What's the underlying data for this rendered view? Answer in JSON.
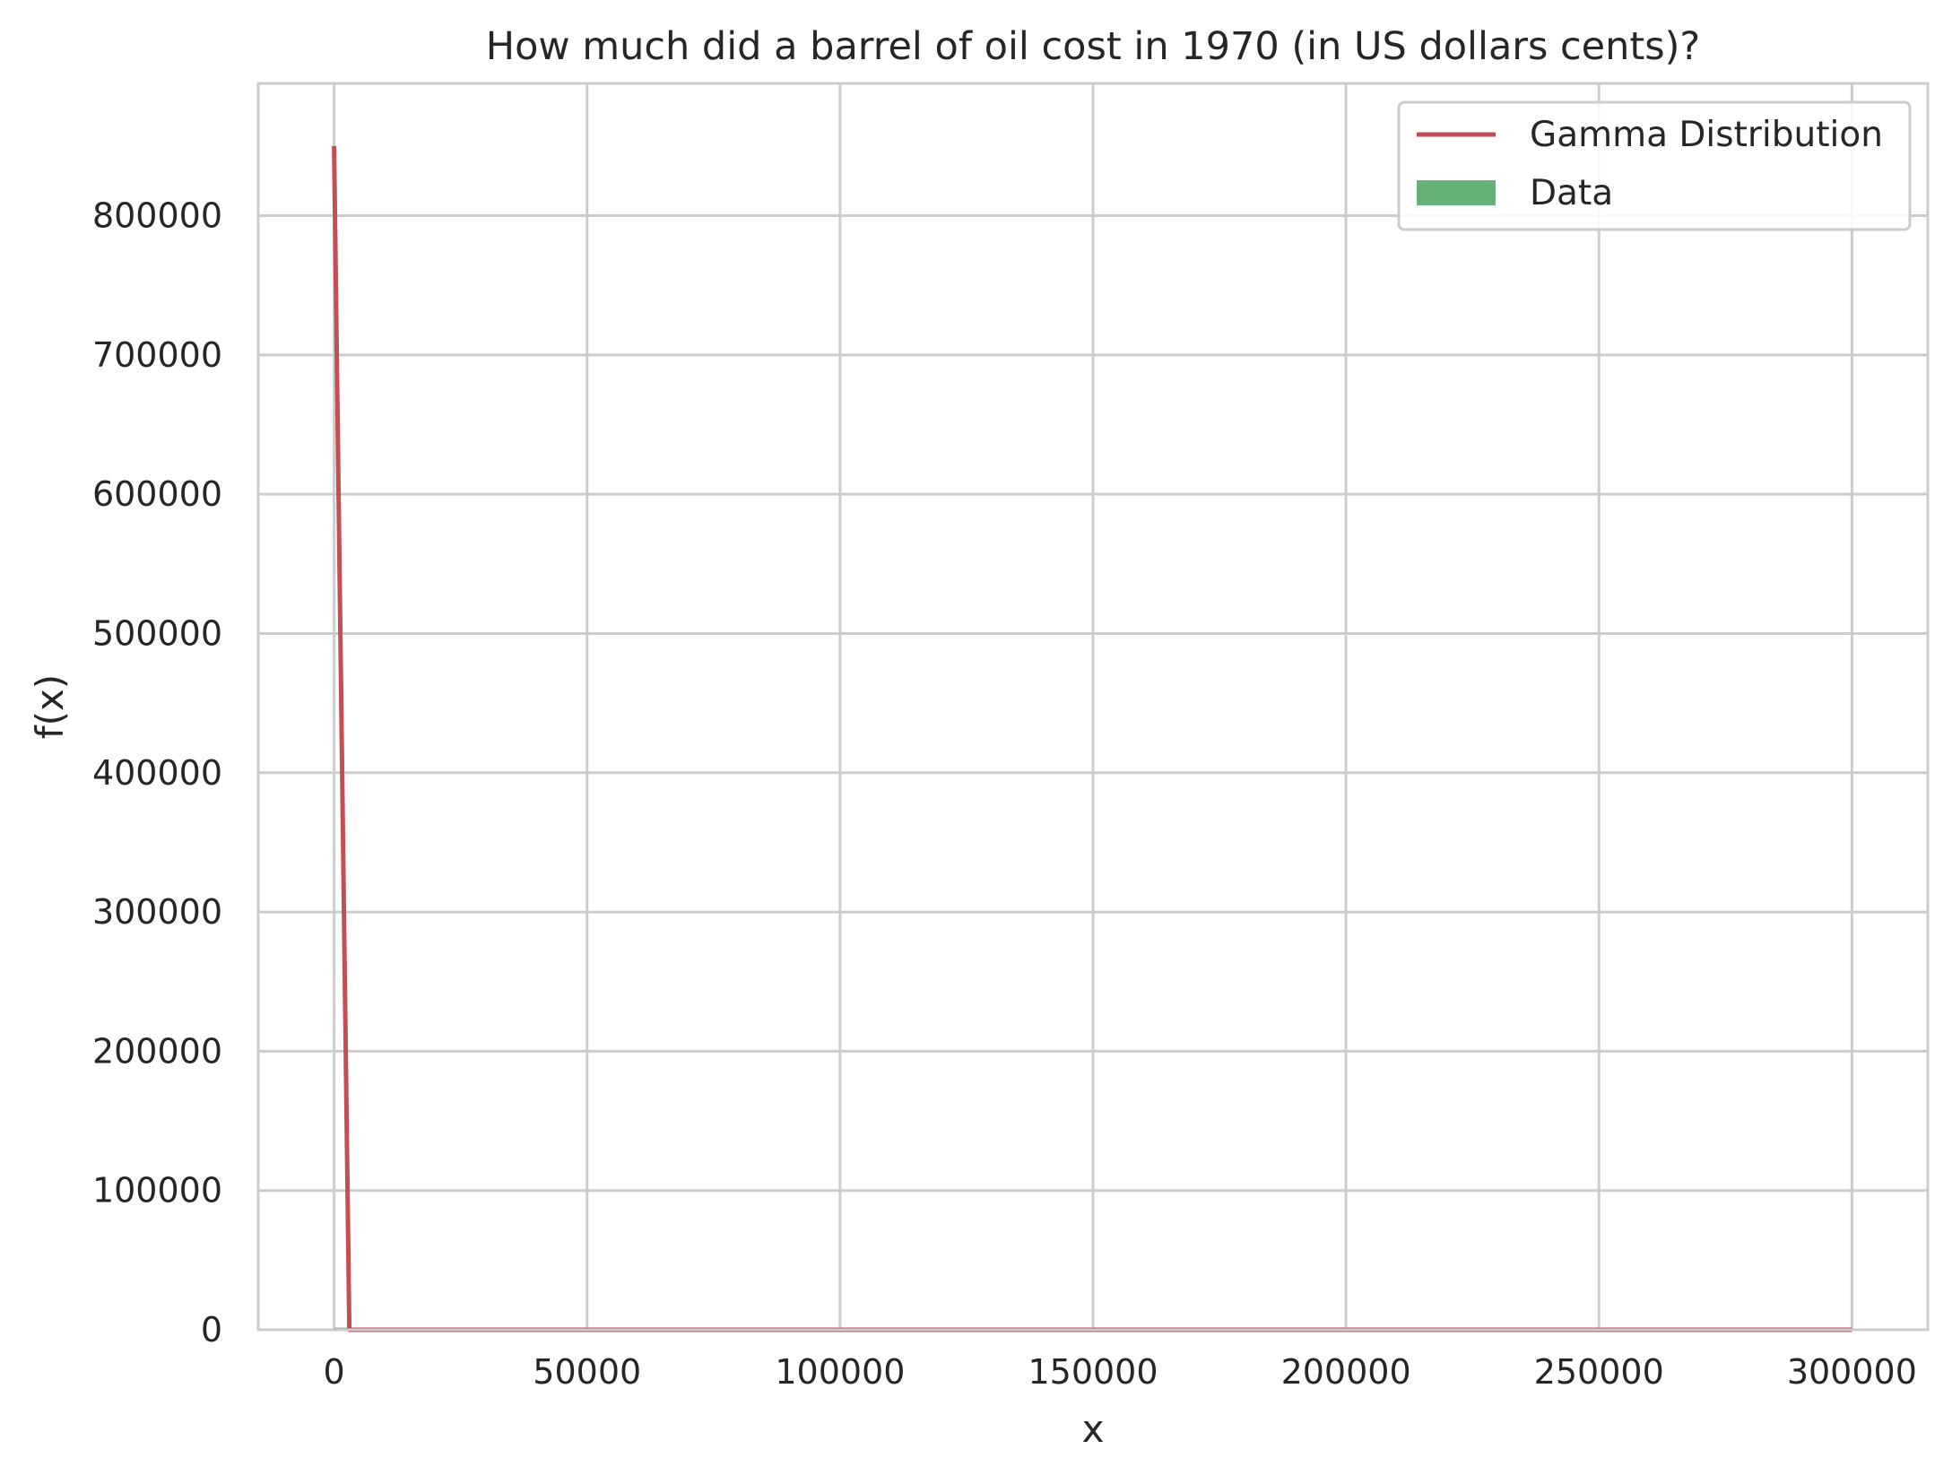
{
  "chart_data": {
    "type": "line",
    "title": "How much did a barrel of oil cost in 1970 (in US dollars cents)?",
    "xlabel": "x",
    "ylabel": "f(x)",
    "xlim": [
      -15000,
      315000
    ],
    "ylim": [
      0,
      895000
    ],
    "xticks": [
      0,
      50000,
      100000,
      150000,
      200000,
      250000,
      300000
    ],
    "yticks": [
      0,
      100000,
      200000,
      300000,
      400000,
      500000,
      600000,
      700000,
      800000
    ],
    "grid": true,
    "legend_position": "top-right",
    "series": [
      {
        "name": "Gamma Distribution",
        "kind": "line",
        "color": "#c44e52",
        "x": [
          0,
          3000,
          300000
        ],
        "y": [
          850000,
          0,
          0
        ]
      },
      {
        "name": "Data",
        "kind": "histogram",
        "color": "#55a868",
        "bins": [
          {
            "x0": 0,
            "x1": 3000,
            "y": 1500
          }
        ]
      }
    ]
  }
}
